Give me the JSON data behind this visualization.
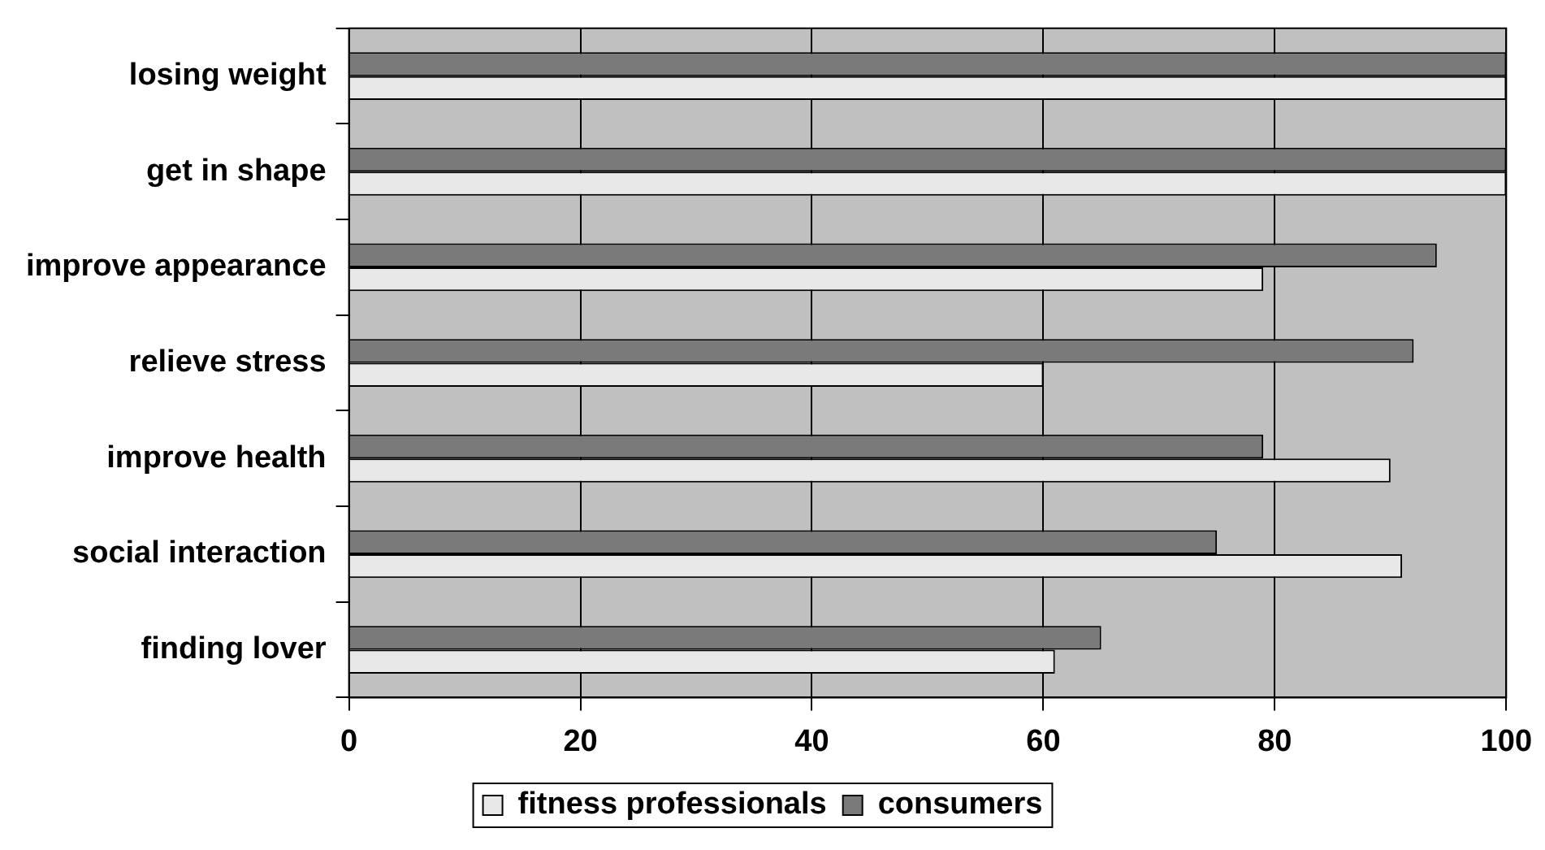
{
  "chart_data": {
    "type": "bar",
    "orientation": "horizontal",
    "categories": [
      "losing weight",
      "get in shape",
      "improve appearance",
      "relieve stress",
      "improve health",
      "social interaction",
      "finding lover"
    ],
    "series": [
      {
        "name": "fitness professionals",
        "color": "#e8e8e8",
        "values": [
          100,
          100,
          79,
          60,
          90,
          91,
          61
        ]
      },
      {
        "name": "consumers",
        "color": "#7a7a7a",
        "values": [
          100,
          100,
          94,
          92,
          79,
          75,
          65
        ]
      }
    ],
    "xlim": [
      0,
      100
    ],
    "xticks": [
      0,
      20,
      40,
      60,
      80,
      100
    ],
    "grid": "x",
    "legend": "bottom"
  }
}
